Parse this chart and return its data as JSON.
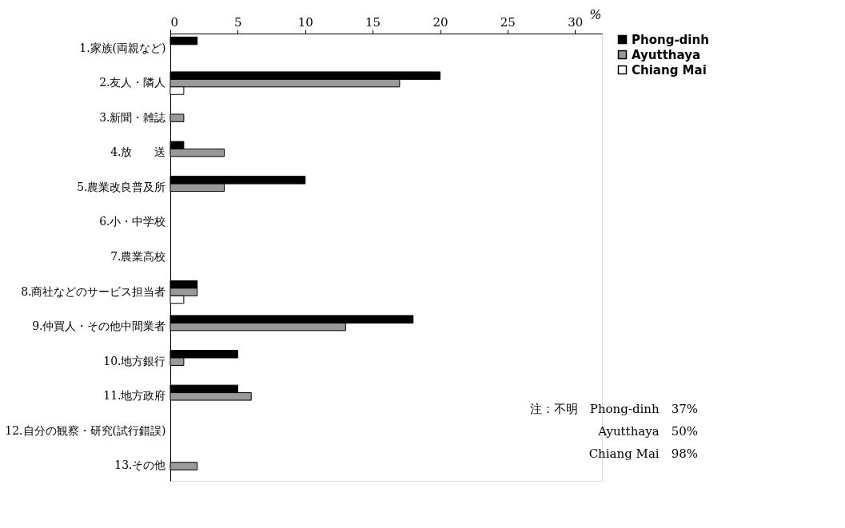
{
  "chart_data": {
    "type": "bar",
    "orientation": "horizontal",
    "categories": [
      "1.家族(両親など)",
      "2.友人・隣人",
      "3.新聞・雑誌",
      "4.放　　送",
      "5.農業改良普及所",
      "6.小・中学校",
      "7.農業高校",
      "8.商社などのサービス担当者",
      "9.仲買人・その他中間業者",
      "10.地方銀行",
      "11.地方政府",
      "12.自分の観察・研究(試行錯誤)",
      "13.その他"
    ],
    "series": [
      {
        "name": "Phong-dinh",
        "color": "#000000",
        "values": [
          2,
          20,
          null,
          1,
          10,
          null,
          null,
          2,
          18,
          5,
          5,
          null,
          null
        ]
      },
      {
        "name": "Ayutthaya",
        "color": "#999999",
        "values": [
          null,
          17,
          1,
          4,
          4,
          null,
          null,
          2,
          13,
          1,
          6,
          null,
          2
        ]
      },
      {
        "name": "Chiang Mai",
        "color": "#ffffff",
        "values": [
          null,
          1,
          null,
          null,
          null,
          null,
          null,
          1,
          null,
          null,
          null,
          null,
          null
        ]
      }
    ],
    "xlabel": "%",
    "xlim": [
      0,
      32
    ],
    "xticks": [
      0,
      5,
      10,
      15,
      20,
      25,
      30
    ],
    "grid": false,
    "legend": "right",
    "annotations": [
      "注：不明　Phong-dinh　37%",
      "Ayutthaya　50%",
      "Chiang Mai　98%"
    ]
  }
}
